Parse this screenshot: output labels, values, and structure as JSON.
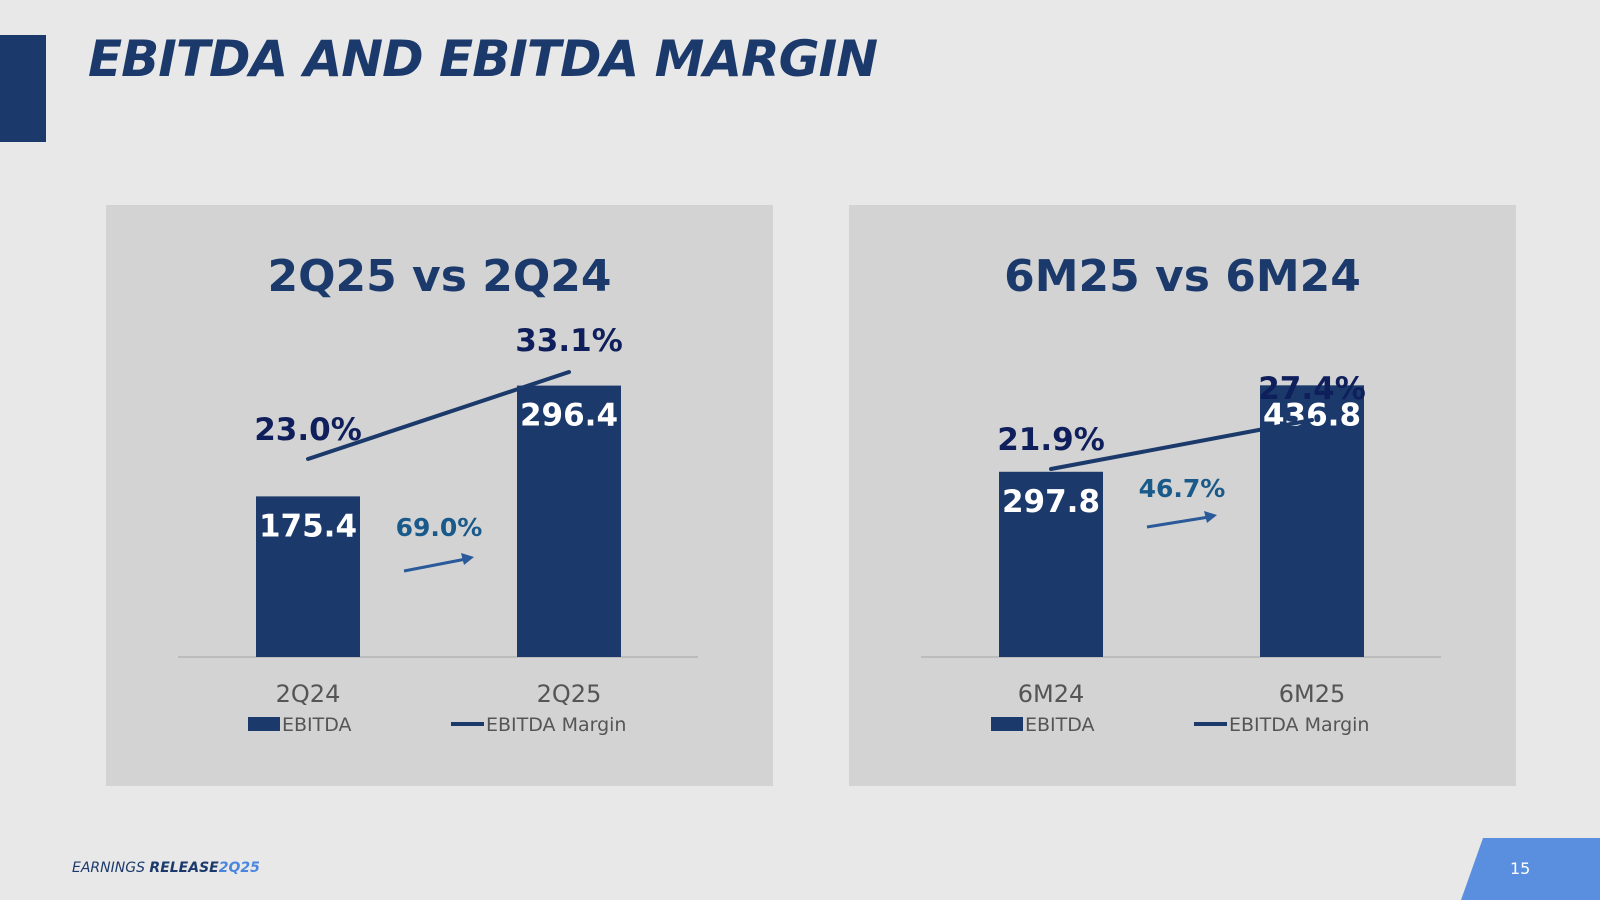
{
  "title": "EBITDA AND EBITDA MARGIN",
  "footer": {
    "brand_a": "EARNINGS",
    "brand_b": "RELEASE",
    "brand_c": "2Q25",
    "page_number": "15"
  },
  "legend": {
    "bar_label": "EBITDA",
    "line_label": "EBITDA Margin"
  },
  "colors": {
    "bar": "#1b3a6b",
    "line": "#1b3a6b",
    "growth": "#1a5a8a",
    "margin_text": "#0f1f5c",
    "axis_text": "#555555"
  },
  "chart_data": [
    {
      "type": "bar+line",
      "title": "2Q25 vs 2Q24",
      "categories": [
        "2Q24",
        "2Q25"
      ],
      "series": [
        {
          "name": "EBITDA",
          "type": "bar",
          "values": [
            175.4,
            296.4
          ],
          "labels": [
            "175.4",
            "296.4"
          ]
        },
        {
          "name": "EBITDA Margin",
          "type": "line",
          "values": [
            23.0,
            33.1
          ],
          "labels": [
            "23.0%",
            "33.1%"
          ]
        }
      ],
      "growth": {
        "value": 69.0,
        "label": "69.0%"
      },
      "ylim": [
        0,
        415
      ]
    },
    {
      "type": "bar+line",
      "title": "6M25 vs 6M24",
      "categories": [
        "6M24",
        "6M25"
      ],
      "series": [
        {
          "name": "EBITDA",
          "type": "bar",
          "values": [
            297.8,
            436.8
          ],
          "labels": [
            "297.8",
            "436.8"
          ]
        },
        {
          "name": "EBITDA Margin",
          "type": "line",
          "values": [
            21.9,
            27.4
          ],
          "labels": [
            "21.9%",
            "27.4%"
          ]
        }
      ],
      "growth": {
        "value": 46.7,
        "label": "46.7%"
      },
      "ylim": [
        0,
        611
      ]
    }
  ]
}
